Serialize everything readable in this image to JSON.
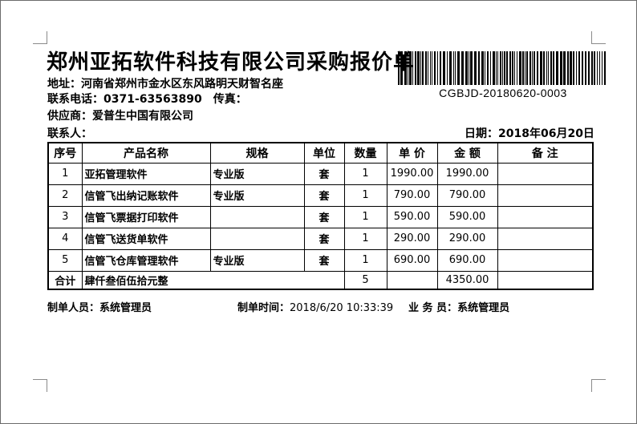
{
  "header": {
    "title": "郑州亚拓软件科技有限公司采购报价单",
    "address_label": "地址：",
    "address_value": "河南省郑州市金水区东风路明天财智名座",
    "phone_label": "联系电话：",
    "phone_value": "0371-63563890",
    "fax_label": "传真：",
    "fax_value": "",
    "supplier_label": "供应商：",
    "supplier_value": "爱普生中国有限公司",
    "contact_label": "联系人：",
    "contact_value": "",
    "date_label": "日期：",
    "date_value": "2018年06月20日",
    "barcode_value": "CGBJD-20180620-0003"
  },
  "quote_table": {
    "columns": [
      "序号",
      "产品名称",
      "规格",
      "单位",
      "数量",
      "单 价",
      "金 额",
      "备  注"
    ],
    "rows": [
      {
        "cells": [
          "1",
          "亚拓管理软件",
          "专业版",
          "套",
          "1",
          "1990.00",
          "1990.00",
          ""
        ]
      },
      {
        "cells": [
          "2",
          "信管飞出纳记账软件",
          "专业版",
          "套",
          "1",
          "790.00",
          "790.00",
          ""
        ]
      },
      {
        "cells": [
          "3",
          "信管飞票据打印软件",
          "",
          "套",
          "1",
          "590.00",
          "590.00",
          ""
        ]
      },
      {
        "cells": [
          "4",
          "信管飞送货单软件",
          "",
          "套",
          "1",
          "290.00",
          "290.00",
          ""
        ]
      },
      {
        "cells": [
          "5",
          "信管飞仓库管理软件",
          "专业版",
          "套",
          "1",
          "690.00",
          "690.00",
          ""
        ]
      }
    ],
    "total_row": {
      "label": "合计",
      "amount_in_words": "肆仟叁佰伍拾元整",
      "quantity": "5",
      "unit_price": "",
      "amount": "4350.00",
      "remark": ""
    }
  },
  "footer": {
    "preparer_label": "制单人员：",
    "preparer_value": "系统管理员",
    "time_label": "制单时间：",
    "time_value": "2018/6/20 10:33:39",
    "salesman_label": "业 务 员：",
    "salesman_value": "系统管理员"
  },
  "colors": {
    "text": "#000000",
    "table_border": "#000000",
    "margin_mark": "#8a8a8a",
    "page_border": "#6b6b6b"
  }
}
